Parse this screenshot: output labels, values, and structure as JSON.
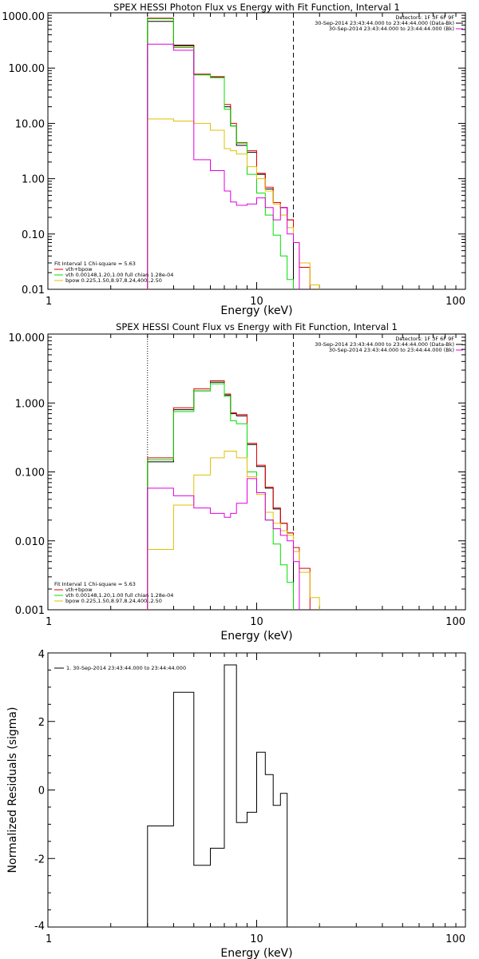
{
  "colors": {
    "data": "#000000",
    "background": "#e00000",
    "total_fit": "#e00000",
    "vth": "#00e000",
    "bpow": "#e0c000",
    "bpow_combined": "#e000e0"
  },
  "chart_data": [
    {
      "type": "line",
      "scale": "log-log",
      "steps": true,
      "title": "SPEX HESSI Photon Flux vs Energy with Fit Function, Interval 1",
      "xlabel": "Energy (keV)",
      "ylabel": "",
      "xlim": [
        1,
        100
      ],
      "ylim": [
        0.01,
        1000
      ],
      "xticks": [
        "1",
        "10",
        "100"
      ],
      "yticks": [
        "0.01",
        "0.10",
        "1.00",
        "10.00",
        "100.00",
        "1000.00"
      ],
      "legend_top": [
        "Detectors: 1F 3F 6F 9F",
        "30-Sep-2014 23:43:44.000 to 23:44:44.000 (Data-Bk)",
        "30-Sep-2014 23:43:44.000 to 23:44:44.000 (Bk)"
      ],
      "legend_bottom": [
        "Fit Interval 1   Chi-square = 5.63",
        "vth+bpow",
        "vth 0.00148,1.20,1.00  full chian 1.28e-04",
        "bpow 0.225,1.50,8.97,8.24,400.,2.50"
      ],
      "vlines": [
        3.0,
        15.0
      ],
      "bin_edges": [
        3.0,
        4.0,
        5.0,
        6.0,
        7.0,
        7.5,
        8.0,
        9.0,
        10.0,
        11.0,
        12.0,
        13.0,
        14.0,
        15.0,
        16.0,
        18.0,
        20.0
      ],
      "series": [
        {
          "key": "data",
          "values": [
            700,
            260,
            76,
            68,
            20,
            9,
            4,
            3,
            1.2,
            0.65,
            0.37,
            0.3,
            0.18,
            null,
            null,
            null
          ]
        },
        {
          "key": "total",
          "values": [
            800,
            250,
            78,
            70,
            22,
            10,
            4.5,
            3.2,
            1.25,
            0.7,
            0.37,
            0.3,
            0.18,
            0.07,
            0.025,
            null
          ]
        },
        {
          "key": "vth",
          "values": [
            780,
            235,
            75,
            67,
            18,
            9,
            4.4,
            1.2,
            0.55,
            0.22,
            0.095,
            0.04,
            0.015,
            null,
            null,
            null
          ]
        },
        {
          "key": "bpow",
          "values": [
            12,
            11,
            10,
            7.5,
            3.5,
            3.2,
            2.8,
            1.65,
            1.0,
            0.6,
            0.35,
            0.22,
            0.13,
            0.07,
            0.03,
            0.012
          ]
        },
        {
          "key": "bpow_combined",
          "values": [
            270,
            210,
            2.2,
            1.4,
            0.6,
            0.38,
            0.33,
            0.35,
            0.45,
            0.3,
            0.18,
            0.3,
            0.1,
            0.07,
            null,
            null
          ]
        }
      ]
    },
    {
      "type": "line",
      "scale": "log-log",
      "steps": true,
      "title": "SPEX HESSI Count Flux vs Energy with Fit Function, Interval 1",
      "xlabel": "Energy (keV)",
      "ylabel": "",
      "xlim": [
        1,
        100
      ],
      "ylim": [
        0.001,
        10
      ],
      "xticks": [
        "1",
        "10",
        "100"
      ],
      "yticks": [
        "0.001",
        "0.010",
        "0.100",
        "1.000",
        "10.000"
      ],
      "legend_top": [
        "Detectors: 1F 3F 6F 9F",
        "30-Sep-2014 23:43:44.000 to 23:44:44.000 (Data-Bk)",
        "30-Sep-2014 23:43:44.000 to 23:44:44.000 (Bk)"
      ],
      "legend_bottom": [
        "Fit Interval 1   Chi-square = 5.63",
        "vth+bpow",
        "vth 0.00148,1.20,1.00  full chian 1.28e-04",
        "bpow 0.225,1.50,8.97,8.24,400.,2.50"
      ],
      "vlines": [
        3.0,
        15.0
      ],
      "bin_edges": [
        3.0,
        4.0,
        5.0,
        6.0,
        7.0,
        7.5,
        8.0,
        9.0,
        10.0,
        11.0,
        12.0,
        13.0,
        14.0,
        15.0,
        16.0,
        18.0,
        20.0
      ],
      "series": [
        {
          "key": "data",
          "values": [
            0.14,
            0.8,
            1.5,
            2.0,
            1.3,
            0.7,
            0.65,
            0.25,
            0.12,
            0.058,
            0.029,
            0.018,
            0.013,
            null,
            null,
            null
          ]
        },
        {
          "key": "total",
          "values": [
            0.16,
            0.85,
            1.6,
            2.1,
            1.35,
            0.72,
            0.68,
            0.26,
            0.125,
            0.06,
            0.03,
            0.018,
            0.013,
            0.008,
            0.004,
            null
          ]
        },
        {
          "key": "vth",
          "values": [
            0.15,
            0.75,
            1.5,
            1.9,
            1.25,
            0.55,
            0.5,
            0.1,
            0.05,
            0.02,
            0.009,
            0.0045,
            0.0025,
            null,
            null,
            null
          ]
        },
        {
          "key": "bpow",
          "values": [
            0.0075,
            0.033,
            0.09,
            0.16,
            0.2,
            0.2,
            0.16,
            0.085,
            0.047,
            0.026,
            0.018,
            0.014,
            0.012,
            0.007,
            0.0035,
            0.0015
          ]
        },
        {
          "key": "bpow_combined",
          "values": [
            0.058,
            0.045,
            0.03,
            0.025,
            0.022,
            0.025,
            0.035,
            0.08,
            0.05,
            0.02,
            0.015,
            0.012,
            0.01,
            0.005,
            null,
            null
          ]
        }
      ]
    },
    {
      "type": "line",
      "scale": "log-x",
      "steps": true,
      "title": "",
      "xlabel": "Energy (keV)",
      "ylabel": "Normalized Residuals (sigma)",
      "xlim": [
        1,
        100
      ],
      "ylim": [
        -4,
        4
      ],
      "xticks": [
        "1",
        "10",
        "100"
      ],
      "yticks": [
        "-4",
        "-2",
        "0",
        "2",
        "4"
      ],
      "legend_top": [
        "1. 30-Sep-2014 23:43:44.000 to 23:44:44.000"
      ],
      "bin_edges": [
        3.0,
        4.0,
        5.0,
        6.0,
        7.0,
        8.0,
        9.0,
        10.0,
        11.0,
        12.0,
        13.0,
        14.0,
        15.0
      ],
      "series": [
        {
          "key": "data",
          "values": [
            -1.05,
            2.85,
            -2.2,
            -1.7,
            3.65,
            -0.95,
            -0.65,
            1.1,
            0.45,
            -0.45,
            -0.1,
            null
          ]
        }
      ]
    }
  ]
}
